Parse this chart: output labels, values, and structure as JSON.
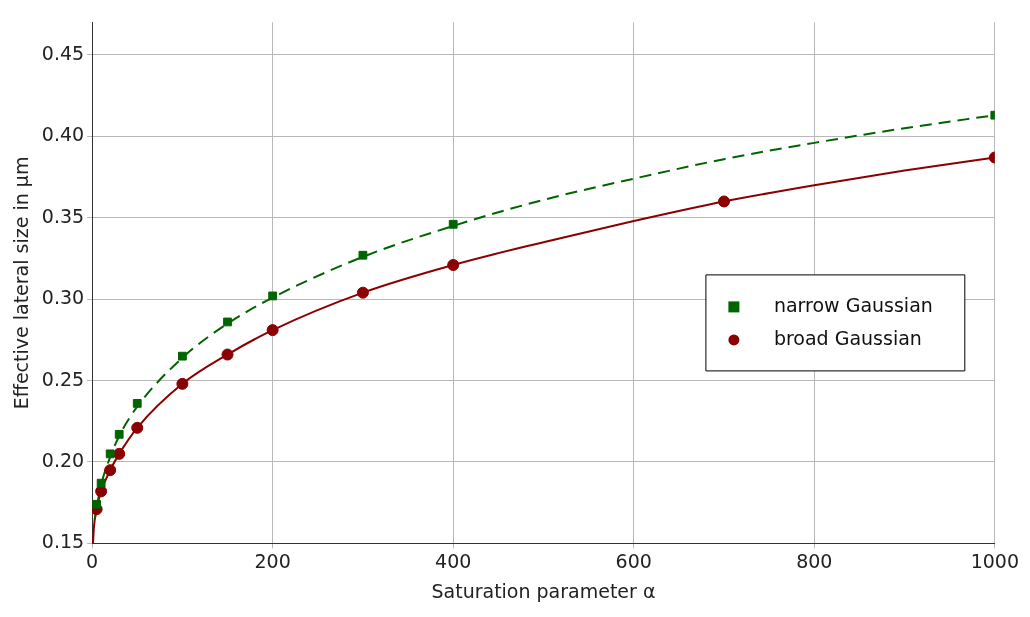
{
  "chart_data": {
    "type": "scatter",
    "xlabel": "Saturation parameter α",
    "ylabel": "Effective lateral size in µm",
    "xlim": [
      0,
      1000
    ],
    "ylim": [
      0.15,
      0.47
    ],
    "xticks": [
      0,
      200,
      400,
      600,
      800,
      1000
    ],
    "yticks": [
      0.15,
      {
        "value": 0.2,
        "label": "0.20"
      },
      0.25,
      {
        "value": 0.3,
        "label": "0.30"
      },
      0.35,
      {
        "value": 0.4,
        "label": "0.40"
      },
      0.45
    ],
    "grid": true,
    "legend": "right",
    "series": [
      {
        "type": "line",
        "color": "#006400",
        "line_style": "dashed",
        "marker": "none",
        "x": [
          3,
          5,
          10,
          20,
          30,
          50,
          100,
          150,
          200,
          300,
          400,
          500,
          600,
          700,
          800,
          900,
          1000
        ],
        "values": [
          0.165,
          0.172,
          0.186,
          0.203,
          0.216,
          0.234,
          0.264,
          0.285,
          0.301,
          0.326,
          0.345,
          0.361,
          0.374,
          0.386,
          0.396,
          0.405,
          0.413
        ]
      },
      {
        "type": "line",
        "color": "#8b0000",
        "line_style": "solid",
        "marker": "none",
        "x": [
          1,
          2,
          5,
          10,
          20,
          30,
          50,
          100,
          150,
          200,
          300,
          400,
          500,
          600,
          700,
          800,
          900,
          1000
        ],
        "values": [
          0.15,
          0.16,
          0.171,
          0.182,
          0.195,
          0.205,
          0.221,
          0.248,
          0.266,
          0.281,
          0.304,
          0.321,
          0.335,
          0.348,
          0.36,
          0.37,
          0.379,
          0.387
        ]
      },
      {
        "name": "narrow Gaussian",
        "type": "scatter",
        "color": "#006400",
        "marker": "square",
        "x": [
          5,
          10,
          20,
          30,
          50,
          100,
          150,
          200,
          300,
          400,
          1000
        ],
        "values": [
          0.174,
          0.187,
          0.205,
          0.217,
          0.236,
          0.265,
          0.286,
          0.302,
          0.327,
          0.346,
          0.413
        ]
      },
      {
        "name": "broad Gaussian",
        "type": "scatter",
        "color": "#8b0000",
        "marker": "circle",
        "x": [
          5,
          10,
          20,
          30,
          50,
          100,
          150,
          200,
          300,
          400,
          700,
          1000
        ],
        "values": [
          0.171,
          0.182,
          0.195,
          0.205,
          0.221,
          0.248,
          0.266,
          0.281,
          0.304,
          0.321,
          0.36,
          0.387
        ]
      }
    ]
  }
}
